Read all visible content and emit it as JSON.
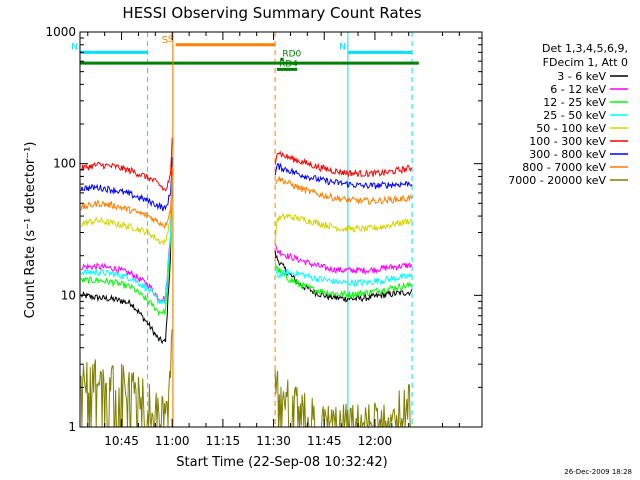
{
  "chart_data": {
    "type": "line",
    "title": "HESSI Observing Summary Count Rates",
    "xlabel": "Start Time (22-Sep-08 10:32:42)",
    "ylabel": "Count Rate (s⁻¹ detector⁻¹)",
    "yscale": "log",
    "ylim": [
      1,
      1000
    ],
    "xlim_minutes_after_start": [
      0,
      119
    ],
    "x_ticks": [
      "10:45",
      "11:00",
      "11:15",
      "11:30",
      "11:45",
      "12:00"
    ],
    "y_ticks": [
      "1",
      "10",
      "100",
      "1000"
    ],
    "legend_placement": "right",
    "legend_header": [
      "Det 1,3,4,5,6,9,",
      "FDecim 1, Att 0"
    ],
    "footer_date": "26-Dec-2009 18:28",
    "time_gaps": [
      {
        "label": "S",
        "start": "11:00:12",
        "end": "11:30:27"
      }
    ],
    "status_bars": [
      {
        "label": "N",
        "start": "10:32:42",
        "end": "10:52:42",
        "level": 700,
        "color": "#00e0ff"
      },
      {
        "label": "N",
        "start": "11:52:00",
        "end": "12:11:00",
        "level": 700,
        "color": "#00e0ff"
      },
      {
        "label": "S",
        "start": "11:01:00",
        "end": "11:30:27",
        "level": 800,
        "color": "#ff7f00"
      },
      {
        "label": "RD0",
        "start": "11:32:00",
        "end": "11:33:00",
        "level": 620,
        "color": "#008000"
      },
      {
        "label": "RD4",
        "start": "11:31:00",
        "end": "11:37:00",
        "level": 520,
        "color": "#008000"
      },
      {
        "label": "",
        "start": "10:32:42",
        "end": "12:13:00",
        "level": 580,
        "color": "#008000"
      }
    ],
    "series": [
      {
        "name": "3 - 6 keV",
        "color": "#000000",
        "segments": [
          {
            "t": [
              "10:33",
              "10:38",
              "10:43",
              "10:48",
              "10:53",
              "10:56",
              "10:58",
              "10:59:30",
              "11:00:12"
            ],
            "y": [
              10,
              9.6,
              9.3,
              8.7,
              6,
              4.6,
              4.4,
              20,
              170
            ]
          },
          {
            "t": [
              "11:30:27",
              "11:31",
              "11:34",
              "11:38",
              "11:42",
              "11:46",
              "11:50",
              "11:54",
              "11:58",
              "12:02",
              "12:06",
              "12:11"
            ],
            "y": [
              21,
              19,
              15,
              12,
              10.6,
              9.8,
              9.5,
              9.4,
              9.6,
              10,
              10.3,
              10.6
            ]
          }
        ]
      },
      {
        "name": "6 - 12 keV",
        "color": "#ff00ff",
        "segments": [
          {
            "t": [
              "10:33",
              "10:38",
              "10:43",
              "10:48",
              "10:53",
              "10:56",
              "10:58",
              "10:59:30",
              "11:00:12"
            ],
            "y": [
              16.5,
              16.5,
              16,
              14.5,
              12,
              9.5,
              9.5,
              30,
              160
            ]
          },
          {
            "t": [
              "11:30:27",
              "11:31",
              "11:34",
              "11:38",
              "11:42",
              "11:46",
              "11:50",
              "11:54",
              "11:58",
              "12:02",
              "12:06",
              "12:11"
            ],
            "y": [
              24,
              22,
              20,
              18.5,
              17,
              16,
              15.5,
              15.5,
              15.5,
              16,
              16.5,
              17
            ]
          }
        ]
      },
      {
        "name": "12 - 25 keV",
        "color": "#00ff00",
        "segments": [
          {
            "t": [
              "10:33",
              "10:38",
              "10:43",
              "10:48",
              "10:53",
              "10:56",
              "10:58",
              "10:59:30",
              "11:00:12"
            ],
            "y": [
              13,
              13,
              12.5,
              11.5,
              9,
              7.5,
              7.5,
              25,
              160
            ]
          },
          {
            "t": [
              "11:30:27",
              "11:31",
              "11:34",
              "11:38",
              "11:42",
              "11:46",
              "11:50",
              "11:54",
              "11:58",
              "12:02",
              "12:06",
              "12:11"
            ],
            "y": [
              18,
              16,
              13.5,
              12,
              11,
              10.5,
              10.2,
              10.2,
              10.5,
              11,
              11.5,
              12
            ]
          }
        ]
      },
      {
        "name": "25 - 50 keV",
        "color": "#00ffff",
        "segments": [
          {
            "t": [
              "10:33",
              "10:38",
              "10:43",
              "10:48",
              "10:53",
              "10:56",
              "10:58",
              "10:59:30",
              "11:00:12"
            ],
            "y": [
              15,
              15,
              14.5,
              13.5,
              11,
              9,
              9,
              28,
              160
            ]
          },
          {
            "t": [
              "11:30:27",
              "11:31",
              "11:34",
              "11:38",
              "11:42",
              "11:46",
              "11:50",
              "11:54",
              "11:58",
              "12:02",
              "12:06",
              "12:11"
            ],
            "y": [
              16,
              14,
              15,
              14.5,
              13.5,
              13,
              12.5,
              12.5,
              12.5,
              13,
              13.5,
              14
            ]
          }
        ]
      },
      {
        "name": "50 - 100 keV",
        "color": "#d4d400",
        "segments": [
          {
            "t": [
              "10:33",
              "10:38",
              "10:43",
              "10:48",
              "10:53",
              "10:56",
              "10:58",
              "10:59:30",
              "11:00:12"
            ],
            "y": [
              35,
              37,
              35,
              33,
              30,
              26,
              25,
              40,
              120
            ]
          },
          {
            "t": [
              "11:30:27",
              "11:31",
              "11:34",
              "11:38",
              "11:42",
              "11:46",
              "11:50",
              "11:54",
              "11:58",
              "12:02",
              "12:06",
              "12:11"
            ],
            "y": [
              25,
              38,
              40,
              38,
              36,
              34,
              32,
              32,
              32,
              33,
              35,
              37
            ]
          }
        ]
      },
      {
        "name": "100 - 300 keV",
        "color": "#ff0000",
        "segments": [
          {
            "t": [
              "10:33",
              "10:38",
              "10:43",
              "10:48",
              "10:53",
              "10:56",
              "10:58",
              "10:59:30",
              "11:00:12"
            ],
            "y": [
              92,
              98,
              95,
              88,
              78,
              70,
              62,
              80,
              200
            ]
          },
          {
            "t": [
              "11:30:27",
              "11:31",
              "11:33",
              "11:36",
              "11:40",
              "11:44",
              "11:48",
              "11:52",
              "11:56",
              "12:00",
              "12:04",
              "12:08",
              "12:11"
            ],
            "y": [
              100,
              125,
              115,
              108,
              100,
              93,
              88,
              85,
              84,
              84,
              86,
              90,
              93
            ]
          }
        ]
      },
      {
        "name": "300 - 800 keV",
        "color": "#0000ff",
        "segments": [
          {
            "t": [
              "10:33",
              "10:38",
              "10:43",
              "10:48",
              "10:53",
              "10:56",
              "10:58",
              "10:59:30",
              "11:00:12"
            ],
            "y": [
              65,
              66,
              63,
              58,
              52,
              48,
              45,
              60,
              150
            ]
          },
          {
            "t": [
              "11:30:27",
              "11:31",
              "11:33",
              "11:36",
              "11:40",
              "11:44",
              "11:48",
              "11:52",
              "11:56",
              "12:00",
              "12:04",
              "12:08",
              "12:11"
            ],
            "y": [
              80,
              96,
              92,
              86,
              80,
              75,
              72,
              70,
              68,
              68,
              69,
              70,
              71
            ]
          }
        ]
      },
      {
        "name": "800 - 7000 keV",
        "color": "#ff7f00",
        "segments": [
          {
            "t": [
              "10:33",
              "10:38",
              "10:43",
              "10:48",
              "10:53",
              "10:56",
              "10:58",
              "10:59:30",
              "11:00:12"
            ],
            "y": [
              46,
              50,
              48,
              44,
              40,
              36,
              34,
              45,
              120
            ]
          },
          {
            "t": [
              "11:30:27",
              "11:31",
              "11:33",
              "11:36",
              "11:40",
              "11:44",
              "11:48",
              "11:52",
              "11:56",
              "12:00",
              "12:04",
              "12:08",
              "12:11"
            ],
            "y": [
              70,
              78,
              74,
              68,
              62,
              58,
              55,
              53,
              52,
              52,
              53,
              54,
              55
            ]
          }
        ]
      },
      {
        "name": "7000 - 20000 keV",
        "color": "#808000",
        "segments": [
          {
            "t": [
              "10:33",
              "10:38",
              "10:43",
              "10:48",
              "10:53",
              "10:56",
              "10:58",
              "10:59:30",
              "11:00:12"
            ],
            "y": [
              2.2,
              2.6,
              2.4,
              2.0,
              1.6,
              1.3,
              1.5,
              3,
              10
            ]
          },
          {
            "t": [
              "11:30:27",
              "11:31",
              "11:34",
              "11:38",
              "11:42",
              "11:46",
              "11:50",
              "11:54",
              "11:58",
              "12:02",
              "12:06",
              "12:11"
            ],
            "y": [
              2.5,
              2.2,
              1.7,
              1.4,
              1.2,
              1.1,
              1.1,
              1.1,
              1.1,
              1.2,
              1.4,
              1.6
            ]
          }
        ]
      }
    ]
  }
}
